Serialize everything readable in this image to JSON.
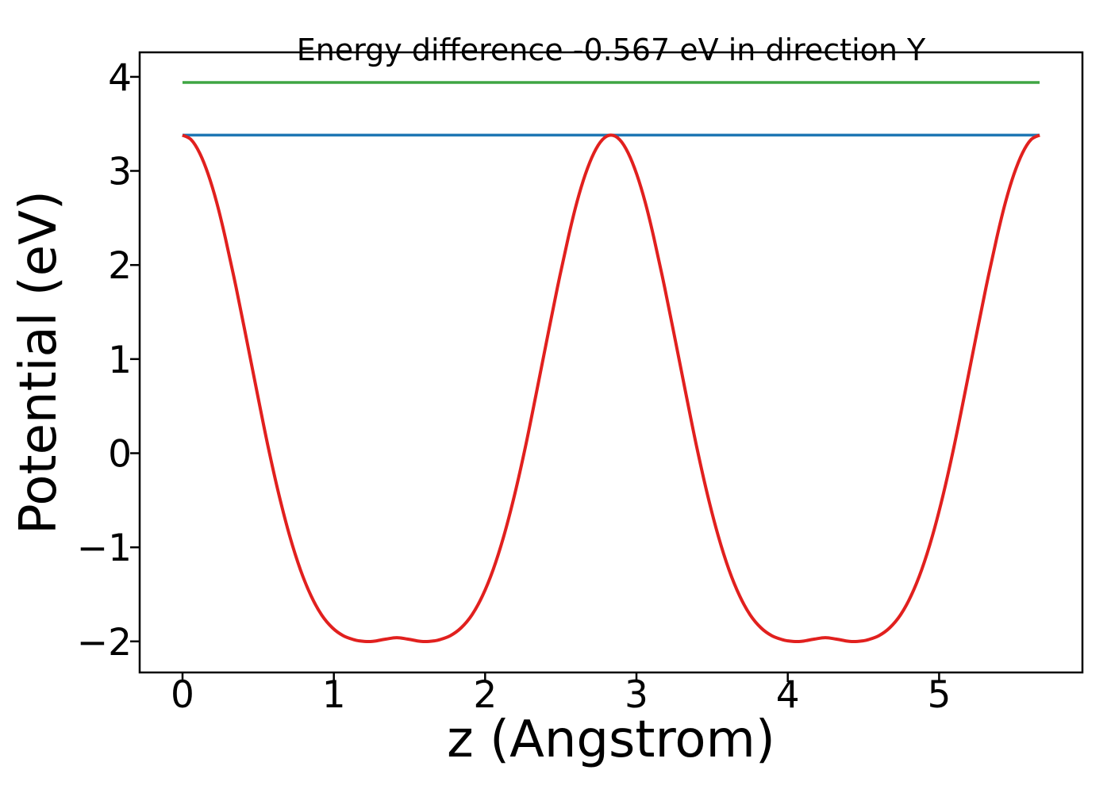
{
  "figure": {
    "background": "#ffffff",
    "frame_color": "#000000"
  },
  "chart_data": {
    "type": "line",
    "title": "Energy difference -0.567 eV in direction Y",
    "xlabel": "z (Angstrom)",
    "ylabel": "Potential (eV)",
    "axes": {
      "xlim": [
        -0.283,
        5.947
      ],
      "ylim": [
        -2.33,
        4.26
      ],
      "xticks": {
        "values": [
          0,
          1,
          2,
          3,
          4,
          5
        ],
        "labels": [
          "0",
          "1",
          "2",
          "3",
          "4",
          "5"
        ]
      },
      "yticks": {
        "values": [
          4,
          3,
          2,
          1,
          0,
          -1,
          -2
        ],
        "labels": [
          "4",
          "3",
          "2",
          "1",
          "0",
          "−1",
          "−2"
        ]
      },
      "grid": false,
      "legend": "none"
    },
    "series": [
      {
        "name": "vacuum-level-green",
        "color": "#3fa543",
        "width": 3.5,
        "smooth": false,
        "points": [
          [
            0.0,
            3.94
          ],
          [
            5.664,
            3.94
          ]
        ]
      },
      {
        "name": "vacuum-level-blue",
        "color": "#1f77b4",
        "width": 3.5,
        "smooth": false,
        "points": [
          [
            0.0,
            3.38
          ],
          [
            5.664,
            3.38
          ]
        ]
      },
      {
        "name": "potential-curve",
        "color": "#e1201e",
        "width": 4,
        "smooth": true,
        "points": [
          [
            0.0,
            3.38
          ],
          [
            0.057,
            3.332
          ],
          [
            0.113,
            3.191
          ],
          [
            0.17,
            2.963
          ],
          [
            0.227,
            2.659
          ],
          [
            0.283,
            2.29
          ],
          [
            0.354,
            1.764
          ],
          [
            0.425,
            1.197
          ],
          [
            0.496,
            0.621
          ],
          [
            0.566,
            0.067
          ],
          [
            0.637,
            -0.439
          ],
          [
            0.708,
            -0.877
          ],
          [
            0.779,
            -1.237
          ],
          [
            0.85,
            -1.517
          ],
          [
            0.92,
            -1.72
          ],
          [
            0.991,
            -1.856
          ],
          [
            1.062,
            -1.939
          ],
          [
            1.133,
            -1.982
          ],
          [
            1.168,
            -1.994
          ],
          [
            1.204,
            -2.0
          ],
          [
            1.239,
            -2.001
          ],
          [
            1.274,
            -1.996
          ],
          [
            1.345,
            -1.975
          ],
          [
            1.416,
            -1.96
          ],
          [
            1.487,
            -1.975
          ],
          [
            1.558,
            -1.996
          ],
          [
            1.593,
            -2.001
          ],
          [
            1.628,
            -2.0
          ],
          [
            1.664,
            -1.994
          ],
          [
            1.699,
            -1.982
          ],
          [
            1.77,
            -1.939
          ],
          [
            1.841,
            -1.856
          ],
          [
            1.912,
            -1.72
          ],
          [
            1.982,
            -1.517
          ],
          [
            2.053,
            -1.237
          ],
          [
            2.124,
            -0.877
          ],
          [
            2.195,
            -0.439
          ],
          [
            2.266,
            0.067
          ],
          [
            2.336,
            0.621
          ],
          [
            2.407,
            1.197
          ],
          [
            2.478,
            1.764
          ],
          [
            2.549,
            2.29
          ],
          [
            2.605,
            2.659
          ],
          [
            2.662,
            2.963
          ],
          [
            2.719,
            3.191
          ],
          [
            2.775,
            3.332
          ],
          [
            2.832,
            3.38
          ],
          [
            2.889,
            3.332
          ],
          [
            2.945,
            3.191
          ],
          [
            3.002,
            2.963
          ],
          [
            3.059,
            2.659
          ],
          [
            3.115,
            2.29
          ],
          [
            3.186,
            1.764
          ],
          [
            3.257,
            1.197
          ],
          [
            3.328,
            0.621
          ],
          [
            3.398,
            0.067
          ],
          [
            3.469,
            -0.439
          ],
          [
            3.54,
            -0.877
          ],
          [
            3.611,
            -1.237
          ],
          [
            3.682,
            -1.517
          ],
          [
            3.752,
            -1.72
          ],
          [
            3.823,
            -1.856
          ],
          [
            3.894,
            -1.939
          ],
          [
            3.965,
            -1.982
          ],
          [
            4.0,
            -1.994
          ],
          [
            4.036,
            -2.0
          ],
          [
            4.071,
            -2.001
          ],
          [
            4.106,
            -1.996
          ],
          [
            4.177,
            -1.975
          ],
          [
            4.248,
            -1.96
          ],
          [
            4.319,
            -1.975
          ],
          [
            4.39,
            -1.996
          ],
          [
            4.425,
            -2.001
          ],
          [
            4.46,
            -2.0
          ],
          [
            4.496,
            -1.994
          ],
          [
            4.531,
            -1.982
          ],
          [
            4.602,
            -1.939
          ],
          [
            4.673,
            -1.856
          ],
          [
            4.744,
            -1.72
          ],
          [
            4.814,
            -1.517
          ],
          [
            4.885,
            -1.237
          ],
          [
            4.956,
            -0.877
          ],
          [
            5.027,
            -0.439
          ],
          [
            5.098,
            0.067
          ],
          [
            5.168,
            0.621
          ],
          [
            5.239,
            1.197
          ],
          [
            5.31,
            1.764
          ],
          [
            5.381,
            2.29
          ],
          [
            5.437,
            2.659
          ],
          [
            5.494,
            2.963
          ],
          [
            5.551,
            3.191
          ],
          [
            5.607,
            3.332
          ],
          [
            5.664,
            3.38
          ]
        ]
      }
    ]
  }
}
